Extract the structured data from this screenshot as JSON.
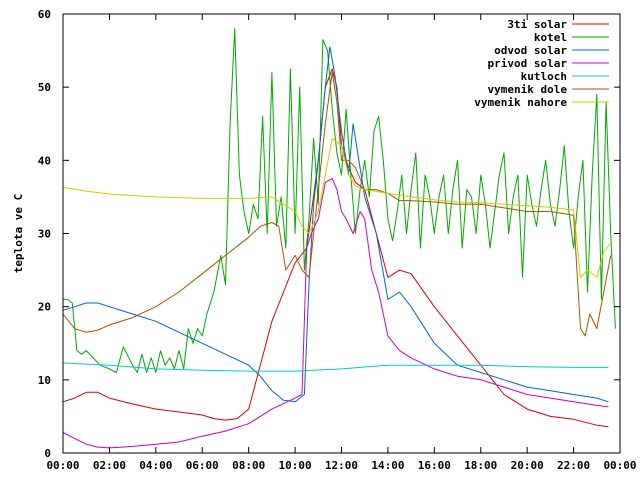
{
  "chart_data": {
    "type": "line",
    "title": "",
    "xlabel": "",
    "ylabel": "teplota ve C",
    "xlim": [
      0,
      24
    ],
    "ylim": [
      0,
      60
    ],
    "grid": false,
    "legend_position": "top-right",
    "x_ticks": [
      {
        "value": 0,
        "label": "00:00"
      },
      {
        "value": 2,
        "label": "02:00"
      },
      {
        "value": 4,
        "label": "04:00"
      },
      {
        "value": 6,
        "label": "06:00"
      },
      {
        "value": 8,
        "label": "08:00"
      },
      {
        "value": 10,
        "label": "10:00"
      },
      {
        "value": 12,
        "label": "12:00"
      },
      {
        "value": 14,
        "label": "14:00"
      },
      {
        "value": 16,
        "label": "16:00"
      },
      {
        "value": 18,
        "label": "18:00"
      },
      {
        "value": 20,
        "label": "20:00"
      },
      {
        "value": 22,
        "label": "22:00"
      },
      {
        "value": 24,
        "label": "00:00"
      }
    ],
    "y_ticks": [
      {
        "value": 0,
        "label": "0"
      },
      {
        "value": 10,
        "label": "10"
      },
      {
        "value": 20,
        "label": "20"
      },
      {
        "value": 30,
        "label": "30"
      },
      {
        "value": 40,
        "label": "40"
      },
      {
        "value": 50,
        "label": "50"
      },
      {
        "value": 60,
        "label": "60"
      }
    ],
    "series": [
      {
        "name": "3ti solar",
        "color": "#dd0000",
        "x": [
          0,
          0.5,
          1,
          1.5,
          2,
          3,
          4,
          5,
          6,
          6.5,
          7,
          7.5,
          8,
          8.5,
          9,
          9.5,
          10,
          10.5,
          11,
          11.3,
          11.6,
          11.8,
          12,
          12.3,
          12.6,
          13,
          13.5,
          14,
          14.5,
          15,
          16,
          17,
          18,
          19,
          20,
          21,
          22,
          22.5,
          23,
          23.5
        ],
        "y": [
          7,
          7.5,
          8.3,
          8.3,
          7.5,
          6.7,
          6,
          5.6,
          5.2,
          4.7,
          4.5,
          4.7,
          6,
          12,
          18,
          22,
          26,
          28,
          40,
          50,
          52.5,
          50,
          42,
          39,
          37,
          36,
          30,
          24,
          25,
          24.5,
          20,
          16,
          12,
          8,
          6,
          5,
          4.6,
          4.2,
          3.8,
          3.6
        ]
      },
      {
        "name": "kotel",
        "color": "#00aa00",
        "x": [
          0,
          0.2,
          0.4,
          0.6,
          0.8,
          1,
          1.3,
          1.6,
          2,
          2.3,
          2.6,
          3,
          3.2,
          3.4,
          3.6,
          3.8,
          4,
          4.2,
          4.4,
          4.6,
          4.8,
          5,
          5.2,
          5.4,
          5.6,
          5.8,
          6,
          6.2,
          6.5,
          6.8,
          7,
          7.2,
          7.4,
          7.6,
          7.8,
          8,
          8.2,
          8.4,
          8.6,
          8.8,
          9,
          9.2,
          9.4,
          9.6,
          9.8,
          10,
          10.2,
          10.4,
          10.6,
          10.8,
          11,
          11.2,
          11.4,
          11.6,
          11.8,
          12,
          12.2,
          12.4,
          12.6,
          12.8,
          13,
          13.2,
          13.4,
          13.6,
          13.8,
          14,
          14.2,
          14.4,
          14.6,
          14.8,
          15,
          15.2,
          15.4,
          15.6,
          15.8,
          16,
          16.2,
          16.4,
          16.6,
          16.8,
          17,
          17.2,
          17.4,
          17.6,
          17.8,
          18,
          18.2,
          18.4,
          18.6,
          18.8,
          19,
          19.2,
          19.4,
          19.6,
          19.8,
          20,
          20.2,
          20.4,
          20.6,
          20.8,
          21,
          21.2,
          21.4,
          21.6,
          21.8,
          22,
          22.2,
          22.4,
          22.6,
          22.8,
          23,
          23.2,
          23.4,
          23.6,
          23.8
        ],
        "y": [
          21,
          21,
          20.5,
          14,
          13.5,
          14,
          13,
          12,
          11.5,
          11,
          14.5,
          12,
          11,
          13.5,
          11,
          13,
          11,
          14,
          12,
          13,
          11.5,
          14,
          11.5,
          17,
          15,
          17,
          16,
          19,
          22,
          27,
          23,
          45,
          58,
          38,
          33,
          30,
          34,
          32,
          46,
          30,
          52,
          31,
          35,
          28,
          52.5,
          30,
          50,
          25,
          32,
          43,
          34,
          56.5,
          55,
          47,
          41,
          38,
          47,
          38,
          30,
          36,
          40,
          35,
          44,
          46,
          40,
          32,
          29,
          33,
          38,
          30,
          36,
          41,
          28,
          38,
          35,
          30,
          35,
          38,
          30,
          36,
          40,
          28,
          36,
          35,
          30,
          38,
          34,
          28,
          33,
          38,
          41,
          30,
          35,
          38,
          24,
          38,
          34,
          31,
          36,
          40,
          34,
          31,
          36,
          42,
          33,
          28,
          35,
          40,
          22,
          38,
          49,
          21,
          48,
          30,
          17
        ]
      },
      {
        "name": "odvod solar",
        "color": "#0066cc",
        "x": [
          0,
          0.5,
          1,
          1.5,
          2,
          3,
          4,
          5,
          6,
          7,
          8,
          8.5,
          9,
          9.5,
          10,
          10.2,
          10.4,
          10.6,
          10.8,
          11,
          11.3,
          11.5,
          11.7,
          12,
          12.3,
          12.5,
          12.7,
          13,
          13.5,
          14,
          14.5,
          15,
          16,
          17,
          18,
          19,
          20,
          21,
          22,
          23,
          23.5
        ],
        "y": [
          19.5,
          20,
          20.5,
          20.5,
          20,
          19,
          18,
          16.5,
          15,
          13.5,
          12,
          10.5,
          8.5,
          7.2,
          7,
          7.5,
          8,
          23,
          34,
          40,
          50,
          55.5,
          52,
          44,
          38,
          45,
          41,
          35,
          30,
          21,
          22,
          20,
          15,
          12,
          11,
          10,
          9,
          8.5,
          8,
          7.5,
          7
        ]
      },
      {
        "name": "privod solar",
        "color": "#cc00cc",
        "x": [
          0,
          0.5,
          1,
          1.5,
          2,
          3,
          4,
          5,
          6,
          7,
          8,
          9,
          10,
          10.3,
          10.5,
          10.7,
          11,
          11.3,
          11.6,
          11.8,
          12,
          12.2,
          12.5,
          12.8,
          13,
          13.3,
          13.6,
          14,
          14.5,
          15,
          16,
          17,
          18,
          19,
          20,
          21,
          22,
          23,
          23.5
        ],
        "y": [
          2.8,
          2,
          1.2,
          0.8,
          0.7,
          0.9,
          1.2,
          1.5,
          2.3,
          3,
          4,
          6,
          7.5,
          8,
          28,
          30,
          32,
          37,
          37.5,
          36,
          33,
          32,
          30,
          33,
          32,
          25,
          22,
          16,
          14,
          13,
          11.5,
          10.5,
          10,
          9,
          8,
          7.5,
          7,
          6.5,
          6.3
        ]
      },
      {
        "name": "kutloch",
        "color": "#00cccc",
        "x": [
          0,
          2,
          4,
          6,
          8,
          10,
          12,
          14,
          16,
          18,
          20,
          22,
          23.5
        ],
        "y": [
          12.3,
          12,
          11.5,
          11.3,
          11.2,
          11.2,
          11.5,
          12,
          12,
          12,
          11.8,
          11.7,
          11.7
        ]
      },
      {
        "name": "vymenik dole",
        "color": "#aa5500",
        "x": [
          0,
          0.5,
          1,
          1.5,
          2,
          3,
          4,
          5,
          6,
          7,
          8,
          8.5,
          9,
          9.3,
          9.6,
          10,
          10.3,
          10.6,
          11,
          11.3,
          11.6,
          11.8,
          12,
          12.3,
          12.6,
          13,
          13.5,
          14,
          14.5,
          15,
          16,
          17,
          18,
          19,
          20,
          21,
          22,
          22.3,
          22.5,
          22.7,
          23,
          23.3,
          23.6
        ],
        "y": [
          19,
          17,
          16.5,
          16.8,
          17.5,
          18.5,
          20,
          22,
          24.5,
          27,
          29.5,
          31,
          31.5,
          31,
          25,
          27,
          25,
          24,
          36,
          45,
          52,
          48,
          40,
          40,
          39,
          36,
          36,
          35.5,
          34.5,
          34.5,
          34.3,
          34,
          34,
          33.5,
          33,
          33,
          32.5,
          17,
          16,
          19,
          17,
          22,
          27
        ]
      },
      {
        "name": "vymenik nahore",
        "color": "#cccc00",
        "x": [
          0,
          1,
          2,
          3,
          4,
          5,
          6,
          7,
          8,
          8.5,
          9,
          9.5,
          10,
          10.3,
          10.6,
          11,
          11.3,
          11.6,
          12,
          12.3,
          12.6,
          13,
          14,
          15,
          16,
          17,
          18,
          19,
          20,
          21,
          22,
          22.3,
          22.6,
          23,
          23.3,
          23.6
        ],
        "y": [
          36.3,
          35.8,
          35.4,
          35.2,
          35,
          34.9,
          34.8,
          34.8,
          34.8,
          34.9,
          35,
          34,
          33,
          31,
          30,
          33,
          38,
          43,
          42,
          38,
          36.5,
          36,
          35.5,
          35,
          34.6,
          34.3,
          34.2,
          34,
          33.8,
          33.6,
          33.2,
          24,
          25,
          24,
          27.5,
          28.7
        ]
      }
    ]
  }
}
